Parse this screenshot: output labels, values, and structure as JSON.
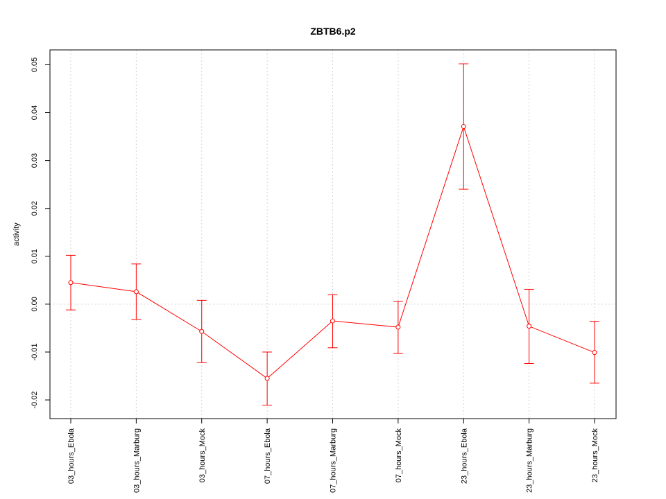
{
  "chart_data": {
    "type": "line",
    "title": "ZBTB6.p2",
    "xlabel": "",
    "ylabel": "activity",
    "categories": [
      "03_hours_Ebola",
      "03_hours_Marburg",
      "03_hours_Mock",
      "07_hours_Ebola",
      "07_hours_Marburg",
      "07_hours_Mock",
      "23_hours_Ebola",
      "23_hours_Marburg",
      "23_hours_Mock"
    ],
    "series": [
      {
        "values": [
          0.0045,
          0.0026,
          -0.0057,
          -0.0155,
          -0.0035,
          -0.0048,
          0.0371,
          -0.0046,
          -0.0101
        ],
        "lower": [
          -0.0012,
          -0.0032,
          -0.0122,
          -0.0211,
          -0.0091,
          -0.0103,
          0.024,
          -0.0124,
          -0.0165
        ],
        "upper": [
          0.0102,
          0.0084,
          0.0008,
          -0.01,
          0.002,
          0.0006,
          0.0502,
          0.0031,
          -0.0036
        ]
      }
    ],
    "yticks": [
      -0.02,
      -0.01,
      0.0,
      0.01,
      0.02,
      0.03,
      0.04,
      0.05
    ],
    "ytick_labels": [
      "-0.02",
      "-0.01",
      "0.00",
      "0.01",
      "0.02",
      "0.03",
      "0.04",
      "0.05"
    ],
    "ylim": [
      -0.0239,
      0.0531
    ],
    "grid": true,
    "colors": {
      "series": "#ff0000",
      "grid": "#d3d3d3",
      "axis": "#000000"
    }
  }
}
